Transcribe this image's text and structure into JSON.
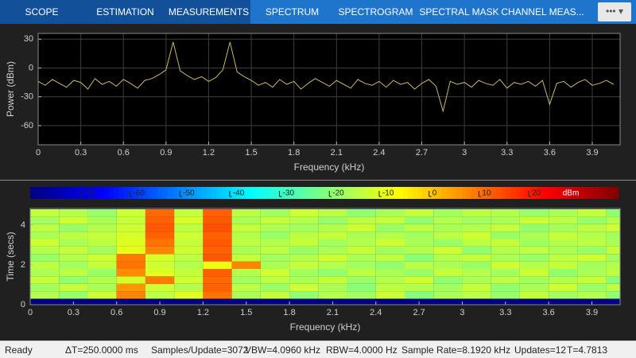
{
  "toolbar": {
    "tabs": [
      "SCOPE",
      "ESTIMATION",
      "MEASUREMENTS"
    ],
    "contextual_tabs": [
      "SPECTRUM",
      "SPECTROGRAM",
      "SPECTRAL MASK",
      "CHANNEL MEAS..."
    ]
  },
  "chart_data": [
    {
      "type": "line",
      "xlabel": "Frequency (kHz)",
      "ylabel": "Power (dBm)",
      "color": "#c9b867",
      "x": [
        0,
        0.05,
        0.1,
        0.15,
        0.2,
        0.25,
        0.3,
        0.35,
        0.4,
        0.45,
        0.5,
        0.55,
        0.6,
        0.65,
        0.7,
        0.75,
        0.8,
        0.85,
        0.9,
        0.95,
        1.0,
        1.05,
        1.1,
        1.15,
        1.2,
        1.25,
        1.3,
        1.35,
        1.4,
        1.45,
        1.5,
        1.55,
        1.6,
        1.65,
        1.7,
        1.75,
        1.8,
        1.85,
        1.9,
        1.95,
        2.0,
        2.05,
        2.1,
        2.15,
        2.2,
        2.25,
        2.3,
        2.35,
        2.4,
        2.45,
        2.5,
        2.55,
        2.6,
        2.65,
        2.7,
        2.75,
        2.8,
        2.85,
        2.9,
        2.95,
        3.0,
        3.05,
        3.1,
        3.15,
        3.2,
        3.25,
        3.3,
        3.35,
        3.4,
        3.45,
        3.5,
        3.55,
        3.6,
        3.65,
        3.7,
        3.75,
        3.8,
        3.85,
        3.9,
        3.95,
        4.0,
        4.05
      ],
      "values": [
        -14,
        -18,
        -12,
        -16,
        -20,
        -13,
        -15,
        -22,
        -11,
        -17,
        -14,
        -19,
        -12,
        -16,
        -21,
        -13,
        -11,
        -7,
        -2,
        27,
        -3,
        -8,
        -12,
        -9,
        -14,
        -10,
        -2,
        27,
        -4,
        -9,
        -13,
        -18,
        -15,
        -20,
        -12,
        -17,
        -14,
        -22,
        -16,
        -11,
        -15,
        -19,
        -13,
        -17,
        -21,
        -12,
        -16,
        -18,
        -14,
        -20,
        -13,
        -17,
        -15,
        -22,
        -16,
        -12,
        -19,
        -45,
        -14,
        -17,
        -15,
        -20,
        -13,
        -16,
        -18,
        -12,
        -21,
        -15,
        -17,
        -14,
        -19,
        -13,
        -38,
        -16,
        -14,
        -20,
        -15,
        -12,
        -18,
        -16,
        -13,
        -17
      ],
      "xlim": [
        0,
        4.096
      ],
      "ylim": [
        -80,
        36
      ],
      "xticks": [
        0,
        0.3,
        0.6,
        0.9,
        1.2,
        1.5,
        1.8,
        2.1,
        2.4,
        2.7,
        3,
        3.3,
        3.6,
        3.9
      ],
      "yticks": [
        30,
        0,
        -30,
        -60
      ],
      "grid": true
    },
    {
      "type": "heatmap",
      "xlabel": "Frequency (kHz)",
      "ylabel": "Time (secs)",
      "colormap": "jet",
      "x_edges": [
        0,
        0.2,
        0.4,
        0.6,
        0.8,
        1.0,
        1.2,
        1.4,
        1.6,
        1.8,
        2.0,
        2.2,
        2.4,
        2.6,
        2.8,
        3.0,
        3.2,
        3.4,
        3.6,
        3.8,
        4.0,
        4.096
      ],
      "y_edges": [
        0.3,
        0.675,
        1.05,
        1.425,
        1.8,
        2.175,
        2.55,
        2.925,
        3.3,
        3.675,
        4.05,
        4.425,
        4.8
      ],
      "values": [
        [
          -15,
          -18,
          -12,
          8,
          -14,
          -10,
          10,
          -16,
          -13,
          -19,
          -15,
          -17,
          -12,
          -20,
          -16,
          -14,
          -18,
          -13,
          -17,
          -15,
          -19
        ],
        [
          -17,
          -13,
          -16,
          6,
          -12,
          -15,
          12,
          -14,
          -18,
          -12,
          -16,
          -20,
          -14,
          -15,
          -17,
          -13,
          -19,
          -16,
          -12,
          -18,
          -14
        ],
        [
          -13,
          -19,
          -15,
          -11,
          9,
          -12,
          11,
          -17,
          -14,
          -16,
          -13,
          -18,
          -15,
          -12,
          -19,
          -16,
          -14,
          -17,
          -15,
          -13,
          -20
        ],
        [
          -16,
          -14,
          -18,
          7,
          -10,
          -13,
          12,
          -15,
          -12,
          -17,
          -19,
          -14,
          -16,
          -18,
          -13,
          -15,
          -17,
          -12,
          -19,
          -16,
          -14
        ],
        [
          -14,
          -17,
          -13,
          10,
          -12,
          -15,
          -8,
          8,
          -16,
          -13,
          -15,
          -17,
          -19,
          -14,
          -16,
          -18,
          -12,
          -15,
          -13,
          -17,
          -15
        ],
        [
          -18,
          -15,
          -12,
          9,
          -11,
          -14,
          13,
          -13,
          -17,
          -15,
          -12,
          -16,
          -14,
          -20,
          -15,
          -13,
          -16,
          -18,
          -14,
          -12,
          -17
        ],
        [
          -15,
          -13,
          -17,
          -9,
          8,
          -12,
          12,
          -16,
          -14,
          -18,
          -16,
          -13,
          -17,
          -15,
          -12,
          -19,
          -15,
          -14,
          -16,
          -18,
          -13
        ],
        [
          -12,
          -16,
          -14,
          -10,
          10,
          -13,
          13,
          -14,
          -15,
          -13,
          -17,
          -15,
          -12,
          -16,
          -18,
          -14,
          -13,
          -17,
          -15,
          -14,
          -16
        ],
        [
          -16,
          -14,
          -13,
          -11,
          12,
          -12,
          12,
          -15,
          -18,
          -14,
          -13,
          -16,
          -15,
          -17,
          -14,
          -12,
          -18,
          -16,
          -13,
          -15,
          -17
        ],
        [
          -14,
          -18,
          -15,
          -12,
          13,
          -14,
          14,
          -13,
          -16,
          -17,
          -15,
          -12,
          -18,
          -14,
          -16,
          -15,
          -13,
          -19,
          -17,
          -14,
          -12
        ],
        [
          -17,
          -12,
          -16,
          -13,
          12,
          -11,
          13,
          -16,
          -13,
          -15,
          -18,
          -14,
          -13,
          -19,
          -15,
          -17,
          -16,
          -12,
          -14,
          -18,
          -15
        ],
        [
          -13,
          -15,
          -18,
          -12,
          11,
          -13,
          12,
          -14,
          -17,
          -12,
          -14,
          -19,
          -16,
          -13,
          -17,
          -14,
          -15,
          -18,
          -16,
          -13,
          -19
        ]
      ],
      "xlim": [
        0,
        4.096
      ],
      "ylim": [
        0,
        4.84
      ],
      "xticks": [
        0,
        0.3,
        0.6,
        0.9,
        1.2,
        1.5,
        1.8,
        2.1,
        2.4,
        2.7,
        3,
        3.3,
        3.6,
        3.9
      ],
      "yticks": [
        0,
        2,
        4
      ],
      "grid": false,
      "colorbar": {
        "clim": [
          -80,
          38
        ],
        "ticks": [
          -70,
          -60,
          -50,
          -40,
          -30,
          -20,
          -10,
          0,
          10,
          20
        ],
        "label": "dBm"
      }
    }
  ],
  "status_bar": {
    "state": "Ready",
    "fields": [
      "ΔT=250.0000 ms",
      "Samples/Update=3072",
      "VBW=4.0960 kHz",
      "RBW=4.0000 Hz",
      "Sample Rate=8.1920 kHz",
      "Updates=12",
      "T=4.7813"
    ]
  }
}
